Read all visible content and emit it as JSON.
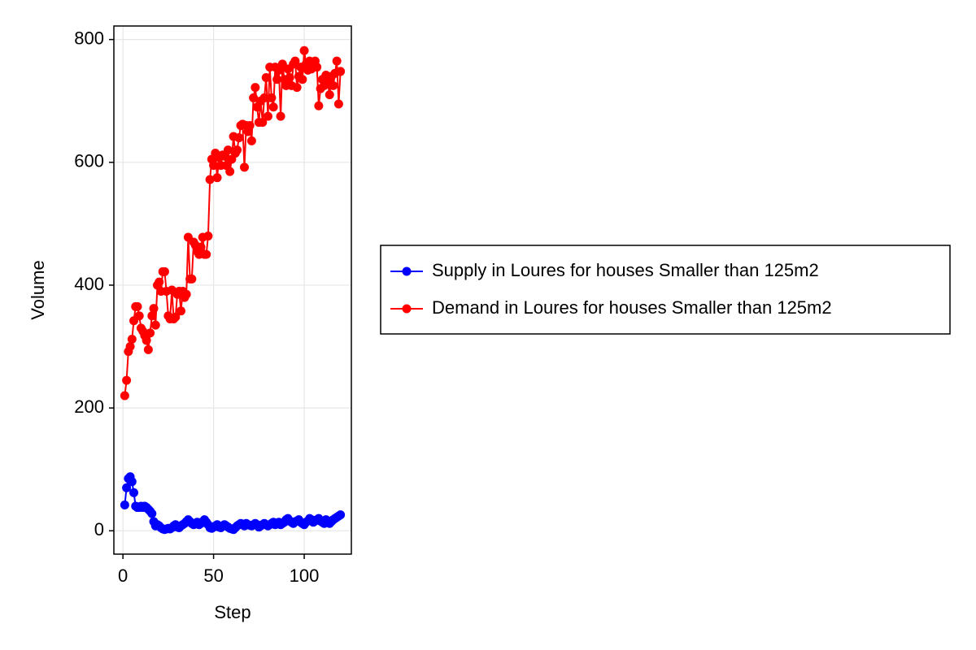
{
  "chart_data": {
    "type": "line",
    "xlabel": "Step",
    "ylabel": "Volume",
    "x": [
      1,
      2,
      3,
      4,
      5,
      6,
      7,
      8,
      9,
      10,
      11,
      12,
      13,
      14,
      15,
      16,
      17,
      18,
      19,
      20,
      21,
      22,
      23,
      24,
      25,
      26,
      27,
      28,
      29,
      30,
      31,
      32,
      33,
      34,
      35,
      36,
      37,
      38,
      39,
      40,
      41,
      42,
      43,
      44,
      45,
      46,
      47,
      48,
      49,
      50,
      51,
      52,
      53,
      54,
      55,
      56,
      57,
      58,
      59,
      60,
      61,
      62,
      63,
      64,
      65,
      66,
      67,
      68,
      69,
      70,
      71,
      72,
      73,
      74,
      75,
      76,
      77,
      78,
      79,
      80,
      81,
      82,
      83,
      84,
      85,
      86,
      87,
      88,
      89,
      90,
      91,
      92,
      93,
      94,
      95,
      96,
      97,
      98,
      99,
      100,
      101,
      102,
      103,
      104,
      105,
      106,
      107,
      108,
      109,
      110,
      111,
      112,
      113,
      114,
      115,
      116,
      117,
      118,
      119,
      120
    ],
    "series": [
      {
        "name": "Supply in Loures for houses Smaller than 125m2",
        "color": "#0000ff",
        "values": [
          42,
          70,
          85,
          88,
          80,
          62,
          40,
          38,
          38,
          40,
          38,
          40,
          38,
          35,
          32,
          28,
          15,
          8,
          10,
          8,
          5,
          3,
          2,
          3,
          4,
          3,
          5,
          8,
          10,
          6,
          5,
          8,
          10,
          12,
          15,
          18,
          15,
          12,
          10,
          12,
          14,
          10,
          12,
          15,
          18,
          14,
          10,
          5,
          4,
          6,
          8,
          10,
          6,
          5,
          8,
          10,
          8,
          6,
          4,
          3,
          2,
          5,
          8,
          10,
          12,
          10,
          8,
          12,
          10,
          9,
          8,
          10,
          12,
          10,
          6,
          8,
          10,
          12,
          10,
          8,
          10,
          12,
          14,
          10,
          12,
          14,
          10,
          12,
          14,
          18,
          20,
          16,
          14,
          12,
          15,
          16,
          18,
          14,
          12,
          10,
          14,
          16,
          20,
          18,
          14,
          16,
          18,
          20,
          16,
          14,
          12,
          18,
          16,
          12,
          15,
          18,
          20,
          22,
          24,
          26
        ]
      },
      {
        "name": "Demand in Loures for houses Smaller than 125m2",
        "color": "#ff0000",
        "values": [
          220,
          245,
          292,
          300,
          312,
          342,
          365,
          365,
          350,
          330,
          325,
          318,
          310,
          295,
          322,
          350,
          362,
          335,
          400,
          405,
          390,
          422,
          422,
          390,
          350,
          345,
          392,
          345,
          348,
          385,
          390,
          358,
          390,
          380,
          385,
          478,
          410,
          410,
          470,
          465,
          455,
          450,
          462,
          478,
          450,
          450,
          480,
          572,
          605,
          595,
          615,
          575,
          608,
          595,
          612,
          610,
          595,
          620,
          585,
          605,
          642,
          615,
          620,
          640,
          660,
          662,
          592,
          660,
          650,
          660,
          635,
          705,
          722,
          690,
          665,
          700,
          665,
          705,
          738,
          675,
          755,
          705,
          690,
          755,
          735,
          750,
          675,
          760,
          735,
          725,
          752,
          738,
          725,
          760,
          765,
          722,
          740,
          755,
          735,
          782,
          760,
          750,
          765,
          752,
          760,
          765,
          755,
          692,
          720,
          735,
          725,
          742,
          730,
          710,
          740,
          725,
          745,
          765,
          695,
          748
        ]
      }
    ],
    "xlim": [
      -5,
      126
    ],
    "xticks": [
      0,
      50,
      100
    ],
    "ylim": [
      -38,
      822
    ],
    "yticks": [
      0,
      200,
      400,
      600,
      800
    ],
    "grid": true,
    "legend": "right"
  }
}
